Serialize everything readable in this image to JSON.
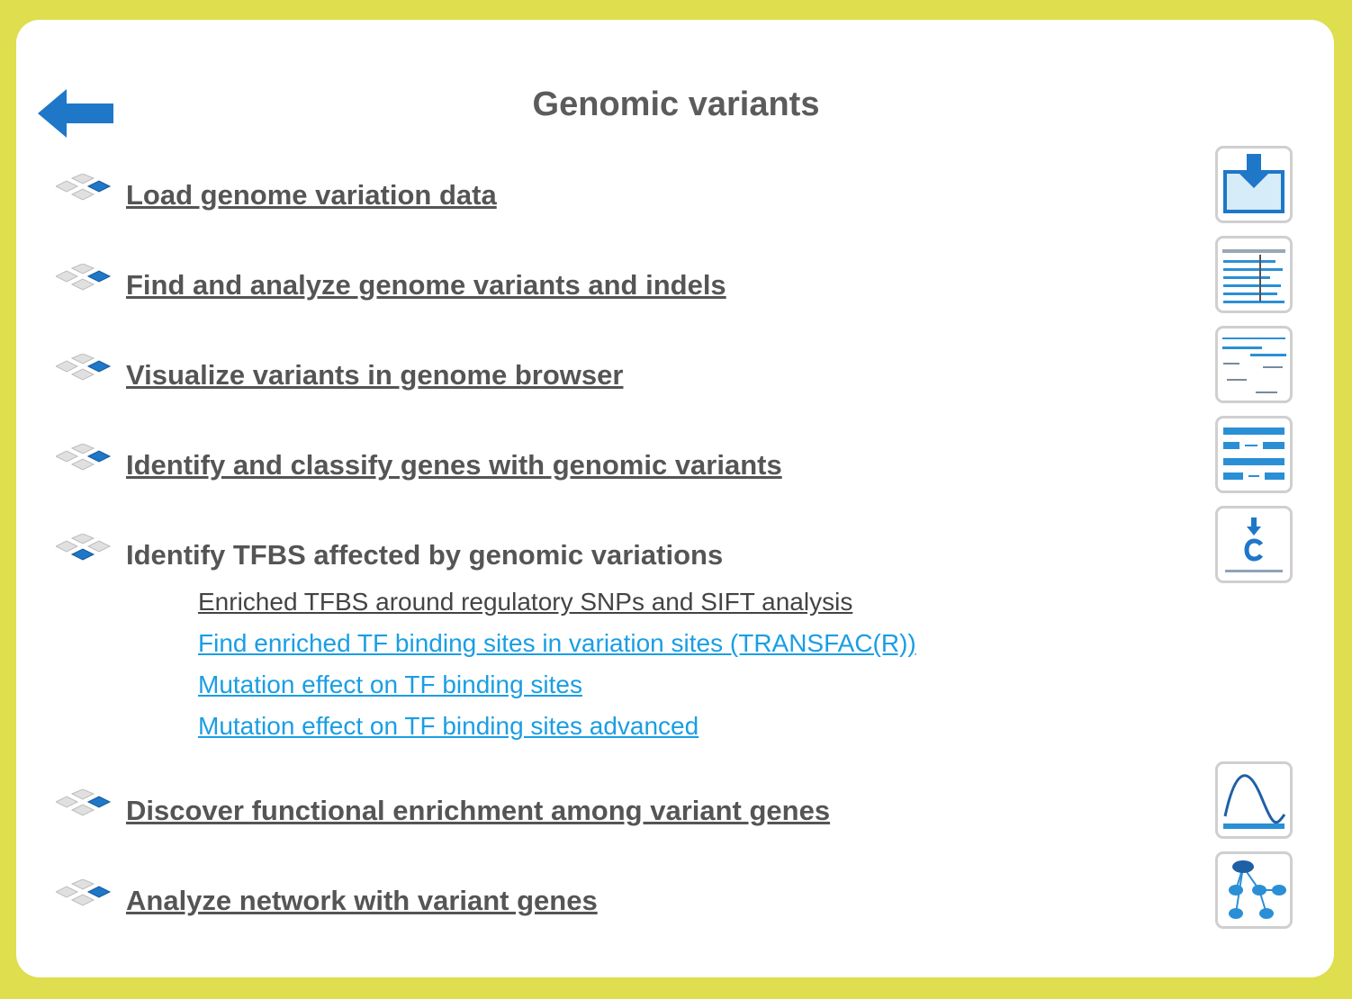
{
  "page": {
    "title": "Genomic variants",
    "back_icon": "back-arrow-icon"
  },
  "colors": {
    "frame": "#dede4e",
    "heading": "#555555",
    "sublink_gray": "#444444",
    "sublink_blue": "#1a9ee3",
    "icon_blue": "#1f77c8"
  },
  "items": [
    {
      "label": "Load genome variation data",
      "icon": "download-data-icon"
    },
    {
      "label": "Find and analyze genome variants and indels",
      "icon": "sequence-alignment-icon"
    },
    {
      "label": "Visualize variants in genome browser",
      "icon": "genome-browser-icon"
    },
    {
      "label": "Identify and classify genes with genomic variants",
      "icon": "gene-structure-icon"
    },
    {
      "label": "Identify TFBS affected by genomic variations",
      "icon": "snp-mutation-icon",
      "sublinks": [
        {
          "label": "Enriched TFBS around regulatory SNPs and SIFT analysis"
        },
        {
          "label": "Find enriched TF binding sites in variation sites (TRANSFAC(R))"
        },
        {
          "label": "Mutation effect on TF binding sites"
        },
        {
          "label": "Mutation effect on TF binding sites advanced"
        }
      ]
    },
    {
      "label": "Discover functional enrichment among variant genes",
      "icon": "enrichment-curve-icon"
    },
    {
      "label": "Analyze network with variant genes",
      "icon": "network-graph-icon"
    }
  ]
}
